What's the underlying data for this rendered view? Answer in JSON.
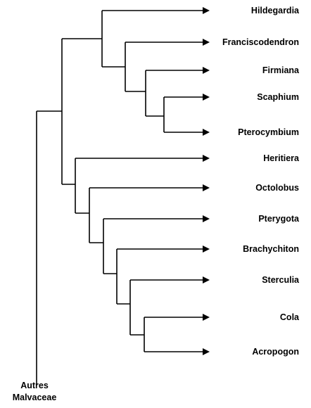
{
  "tree": {
    "root_label_lines": [
      "Autres",
      "Malvaceae"
    ],
    "taxa": [
      "Hildegardia",
      "Franciscodendron",
      "Firmiana",
      "Scaphium",
      "Pterocymbium",
      "Heritiera",
      "Octolobus",
      "Pterygota",
      "Brachychiton",
      "Sterculia",
      "Cola",
      "Acropogon"
    ]
  }
}
